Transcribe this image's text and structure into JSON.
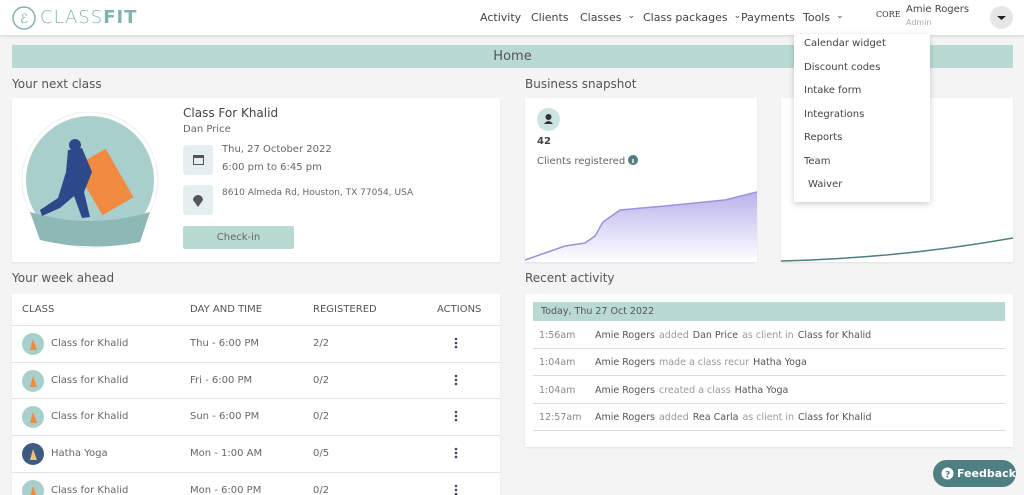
{
  "brand": {
    "part1": "CLASS",
    "part2": "FIT"
  },
  "nav": {
    "items": [
      "Activity",
      "Clients",
      "Classes",
      "Class packages",
      "Payments",
      "Tools"
    ],
    "partner_logo": "CORE",
    "user_name": "Amie Rogers",
    "user_role": "Admin"
  },
  "tools_menu": [
    "Calendar widget",
    "Discount codes",
    "Intake form",
    "Integrations",
    "Reports",
    "Team",
    "Waiver"
  ],
  "page_title": "Home",
  "next_class": {
    "heading": "Your next class",
    "name": "Class For Khalid",
    "instructor": "Dan Price",
    "date": "Thu, 27 October 2022",
    "time": "6:00 pm to 6:45 pm",
    "address": "8610 Almeda Rd, Houston, TX 77054, USA",
    "button": "Check-in"
  },
  "snapshot": {
    "heading": "Business snapshot",
    "value": "42",
    "label": "Clients registered"
  },
  "week": {
    "heading": "Your week ahead",
    "columns": [
      "CLASS",
      "DAY AND TIME",
      "REGISTERED",
      "ACTIONS"
    ],
    "rows": [
      [
        "Class for Khalid",
        "Thu - 6:00 PM",
        "2/2"
      ],
      [
        "Class for Khalid",
        "Fri - 6:00 PM",
        "0/2"
      ],
      [
        "Class for Khalid",
        "Sun - 6:00 PM",
        "0/2"
      ],
      [
        "Hatha Yoga",
        "Mon - 1:00 AM",
        "0/5"
      ],
      [
        "Class for Khalid",
        "Mon - 6:00 PM",
        "0/2"
      ]
    ]
  },
  "activity": {
    "heading": "Recent activity",
    "date": "Today, Thu 27 Oct 2022",
    "entries": [
      {
        "time": "1:56am",
        "parts": [
          "Amie Rogers",
          "added",
          "Dan Price",
          "as client in",
          "Class for Khalid"
        ]
      },
      {
        "time": "1:04am",
        "parts": [
          "Amie Rogers",
          "made a class recur",
          "Hatha Yoga"
        ]
      },
      {
        "time": "1:04am",
        "parts": [
          "Amie Rogers",
          "created a class",
          "Hatha Yoga"
        ]
      },
      {
        "time": "12:57am",
        "parts": [
          "Amie Rogers",
          "added",
          "Rea Carla",
          "as client in",
          "Class for Khalid"
        ]
      }
    ]
  },
  "feedback": "Feedback"
}
